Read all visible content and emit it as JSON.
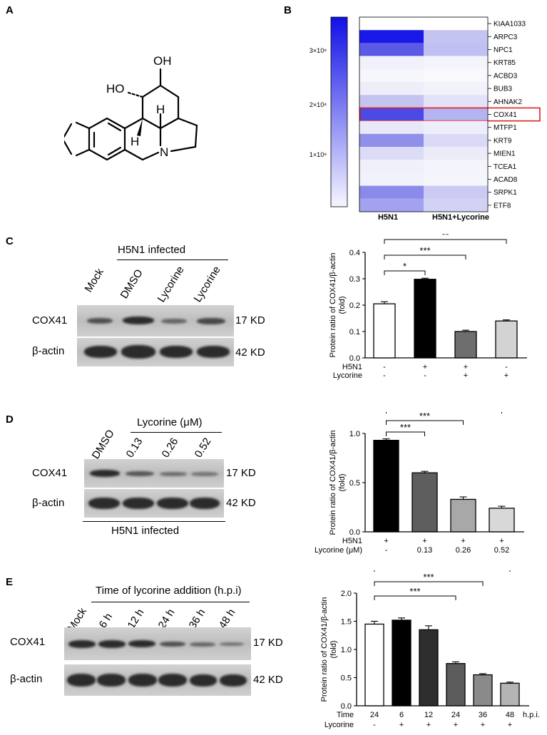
{
  "panels": {
    "a": "A",
    "b": "B",
    "c": "C",
    "d": "D",
    "e": "E"
  },
  "structure": {
    "oh_top": "OH",
    "ho_left": "HO",
    "h_upper": "H",
    "h_lower": "H",
    "n": "N"
  },
  "heatmap": {
    "scale_ticks": [
      "3×10⁸",
      "2×10⁸",
      "1×10⁸"
    ],
    "col_labels": [
      "H5N1",
      "H5N1+Lycorine"
    ],
    "genes": [
      "KIAA1033",
      "ARPC3",
      "NPC1",
      "KRT85",
      "ACBD3",
      "BUB3",
      "AHNAK2",
      "COX41",
      "MTFP1",
      "KRT9",
      "MIEN1",
      "TCEA1",
      "ACAD8",
      "SRPK1",
      "ETF8"
    ],
    "highlight": "COX41",
    "colors_h5n1": [
      "#ffffff",
      "#1a1ae8",
      "#5a5ae6",
      "#f1f1fb",
      "#f6f6fd",
      "#eeeefa",
      "#c4c4f1",
      "#4a4ae6",
      "#e8e8f8",
      "#9090ea",
      "#dcdcf6",
      "#f0f0fb",
      "#f2f2fc",
      "#8a8aea",
      "#a2a2ee"
    ],
    "colors_lyc": [
      "#ffffff",
      "#c4c4f3",
      "#c0c0f3",
      "#f4f4fc",
      "#f8f8fd",
      "#f2f2fb",
      "#e2e2f8",
      "#b4b4f0",
      "#eeeefb",
      "#dadaf6",
      "#ececf9",
      "#f4f4fc",
      "#f5f5fc",
      "#cacaf3",
      "#d2d2f4"
    ]
  },
  "blot_c": {
    "header": "H5N1 infected",
    "lanes": [
      "Mock",
      "DMSO",
      "Lycorine",
      "Lycorine"
    ],
    "rows": [
      "COX41",
      "β-actin"
    ],
    "sizes": [
      "17 KD",
      "42 KD"
    ]
  },
  "blot_d": {
    "header": "Lycorine (μM)",
    "lanes": [
      "DMSO",
      "0.13",
      "0.26",
      "0.52"
    ],
    "rows": [
      "COX41",
      "β-actin"
    ],
    "sizes": [
      "17 KD",
      "42 KD"
    ],
    "footer": "H5N1 infected"
  },
  "blot_e": {
    "header": "Time of lycorine addition (h.p.i)",
    "lanes": [
      "Mock",
      "6 h",
      "12 h",
      "24 h",
      "36 h",
      "48 h"
    ],
    "rows": [
      "COX41",
      "β-actin"
    ],
    "sizes": [
      "17 KD",
      "42 KD"
    ]
  },
  "chart_data": [
    {
      "type": "bar",
      "ylabel": "Protein ratio of COX41/β-actin (fold)",
      "ylim": [
        0,
        0.4
      ],
      "yticks": [
        "0.0",
        "0.1",
        "0.2",
        "0.3",
        "0.4"
      ],
      "values": [
        0.205,
        0.298,
        0.1,
        0.14
      ],
      "errors": [
        0.008,
        0.004,
        0.005,
        0.004
      ],
      "bar_colors": [
        "#ffffff",
        "#000000",
        "#6e6e6e",
        "#d3d3d3"
      ],
      "rowlabels": [
        "H5N1",
        "Lycorine"
      ],
      "rows": [
        [
          "-",
          "+",
          "+",
          "-"
        ],
        [
          "-",
          "-",
          "+",
          "+"
        ]
      ],
      "significance": [
        {
          "from": 0,
          "to": 1,
          "label": "*"
        },
        {
          "from": 0,
          "to": 2,
          "label": "***"
        },
        {
          "from": 0,
          "to": 3,
          "label": "**"
        }
      ]
    },
    {
      "type": "bar",
      "ylabel": "Protein ratio of COX41/β-actin (fold)",
      "ylim": [
        0,
        1.0
      ],
      "yticks": [
        "0.0",
        "0.5",
        "1.0"
      ],
      "values": [
        0.93,
        0.6,
        0.33,
        0.24
      ],
      "errors": [
        0.015,
        0.015,
        0.025,
        0.02
      ],
      "bar_colors": [
        "#000000",
        "#5e5e5e",
        "#a8a8a8",
        "#d8d8d8"
      ],
      "rowlabels": [
        "H5N1",
        "Lycorine (μM)"
      ],
      "rows": [
        [
          "+",
          "+",
          "+",
          "+"
        ],
        [
          "-",
          "0.13",
          "0.26",
          "0.52"
        ]
      ],
      "significance": [
        {
          "from": 0,
          "to": 1,
          "label": "***"
        },
        {
          "from": 0,
          "to": 2,
          "label": "***"
        },
        {
          "from": 0,
          "to": 3,
          "label": "***"
        }
      ]
    },
    {
      "type": "bar",
      "ylabel": "Protein ratio of COX41/β-actin (fold)",
      "ylim": [
        0,
        2.0
      ],
      "yticks": [
        "0.0",
        "0.5",
        "1.0",
        "1.5",
        "2.0"
      ],
      "values": [
        1.45,
        1.52,
        1.35,
        0.75,
        0.55,
        0.4
      ],
      "errors": [
        0.05,
        0.04,
        0.07,
        0.03,
        0.02,
        0.02
      ],
      "bar_colors": [
        "#ffffff",
        "#000000",
        "#2e2e2e",
        "#5c5c5c",
        "#8a8a8a",
        "#b4b4b4"
      ],
      "rowlabels": [
        "Time",
        "Lycorine"
      ],
      "rows": [
        [
          "24",
          "6",
          "12",
          "24",
          "36",
          "48"
        ],
        [
          "-",
          "+",
          "+",
          "+",
          "+",
          "+"
        ]
      ],
      "row_suffix": "h.p.i.",
      "significance": [
        {
          "from": 0,
          "to": 3,
          "label": "***"
        },
        {
          "from": 0,
          "to": 4,
          "label": "***"
        },
        {
          "from": 0,
          "to": 5,
          "label": "***"
        }
      ]
    }
  ]
}
